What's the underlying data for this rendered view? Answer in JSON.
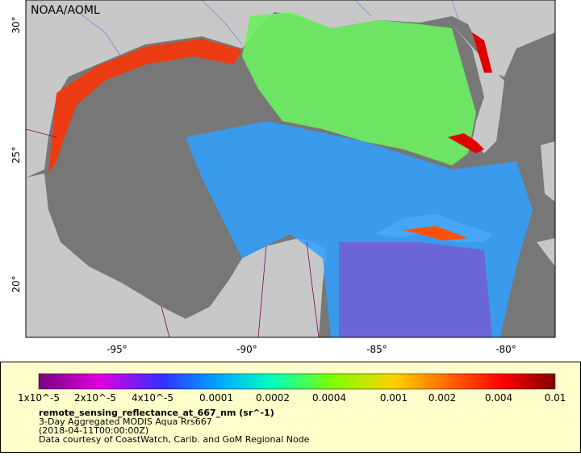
{
  "map": {
    "credit": "NOAA/AOML",
    "lat_labels": [
      "20°",
      "25°",
      "30°"
    ],
    "lon_labels": [
      "-95°",
      "-90°",
      "-85°",
      "-80°"
    ]
  },
  "legend": {
    "colorbar_labels": [
      "1x10^-5",
      "2x10^-5",
      "4x10^-5",
      "0.0001",
      "0.0002",
      "0.0004",
      "0.001",
      "0.002",
      "0.004",
      "0.01"
    ],
    "variable": "remote_sensing_reflectance_at_667_nm (sr^-1)",
    "lines": [
      "3-Day Aggregated MODIS Aqua Rrs667",
      "(2018-04-11T00:00:00Z)",
      "Data courtesy of CoastWatch, Carib. and GoM Regional Node"
    ]
  }
}
